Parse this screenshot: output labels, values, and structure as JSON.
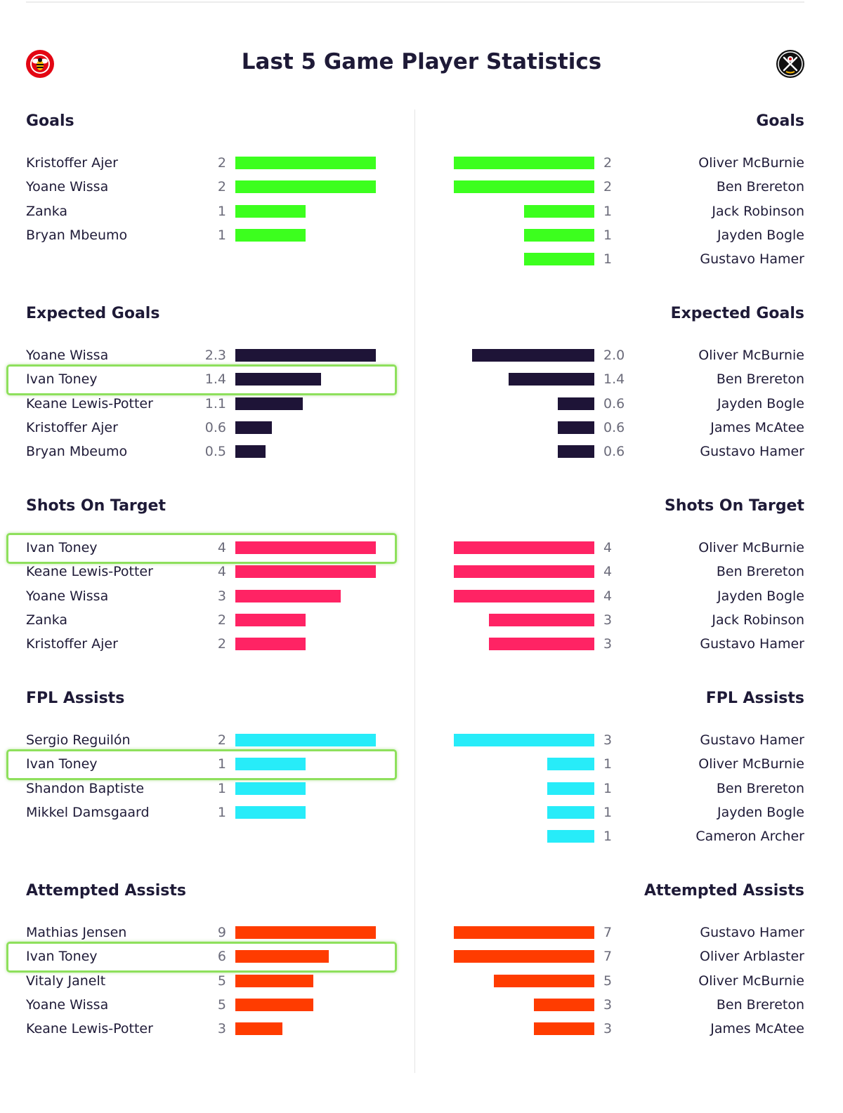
{
  "title": "Last 5 Game Player Statistics",
  "colors": {
    "goals": "#3cff1e",
    "expected_goals": "#1e1437",
    "shots_on_target": "#ff2364",
    "fpl_assists": "#27ecf9",
    "attempted_assists": "#ff3c00",
    "highlight": "#8ee05c"
  },
  "home_logo": "brentford-bee-crest-icon",
  "away_logo": "sheffield-united-crest-icon",
  "chart_data": [
    {
      "type": "bar",
      "title": "Goals",
      "max": 2,
      "home": {
        "players": [
          "Kristoffer Ajer",
          "Yoane Wissa",
          "Zanka",
          "Bryan Mbeumo"
        ],
        "values": [
          2,
          2,
          1,
          1
        ],
        "labels": [
          "2",
          "2",
          "1",
          "1"
        ]
      },
      "away": {
        "players": [
          "Oliver McBurnie",
          "Ben Brereton",
          "Jack Robinson",
          "Jayden Bogle",
          "Gustavo Hamer"
        ],
        "values": [
          2,
          2,
          1,
          1,
          1
        ],
        "labels": [
          "2",
          "2",
          "1",
          "1",
          "1"
        ]
      },
      "highlight_home_row": -1
    },
    {
      "type": "bar",
      "title": "Expected Goals",
      "max": 2.3,
      "home": {
        "players": [
          "Yoane Wissa",
          "Ivan Toney",
          "Keane Lewis-Potter",
          "Kristoffer Ajer",
          "Bryan Mbeumo"
        ],
        "values": [
          2.3,
          1.4,
          1.1,
          0.6,
          0.5
        ],
        "labels": [
          "2.3",
          "1.4",
          "1.1",
          "0.6",
          "0.5"
        ]
      },
      "away": {
        "players": [
          "Oliver McBurnie",
          "Ben Brereton",
          "Jayden Bogle",
          "James McAtee",
          "Gustavo Hamer"
        ],
        "values": [
          2.0,
          1.4,
          0.6,
          0.6,
          0.6
        ],
        "labels": [
          "2.0",
          "1.4",
          "0.6",
          "0.6",
          "0.6"
        ]
      },
      "highlight_home_row": 1
    },
    {
      "type": "bar",
      "title": "Shots On Target",
      "max": 4,
      "home": {
        "players": [
          "Ivan Toney",
          "Keane Lewis-Potter",
          "Yoane Wissa",
          "Zanka",
          "Kristoffer Ajer"
        ],
        "values": [
          4,
          4,
          3,
          2,
          2
        ],
        "labels": [
          "4",
          "4",
          "3",
          "2",
          "2"
        ]
      },
      "away": {
        "players": [
          "Oliver McBurnie",
          "Ben Brereton",
          "Jayden Bogle",
          "Jack Robinson",
          "Gustavo Hamer"
        ],
        "values": [
          4,
          4,
          4,
          3,
          3
        ],
        "labels": [
          "4",
          "4",
          "4",
          "3",
          "3"
        ]
      },
      "highlight_home_row": 0
    },
    {
      "type": "bar",
      "title": "FPL Assists",
      "max": 2,
      "away_max": 3,
      "home": {
        "players": [
          "Sergio Reguilón",
          "Ivan Toney",
          "Shandon Baptiste",
          "Mikkel Damsgaard"
        ],
        "values": [
          2,
          1,
          1,
          1
        ],
        "labels": [
          "2",
          "1",
          "1",
          "1"
        ]
      },
      "away": {
        "players": [
          "Gustavo Hamer",
          "Oliver McBurnie",
          "Ben Brereton",
          "Jayden Bogle",
          "Cameron Archer"
        ],
        "values": [
          3,
          1,
          1,
          1,
          1
        ],
        "labels": [
          "3",
          "1",
          "1",
          "1",
          "1"
        ]
      },
      "highlight_home_row": 1
    },
    {
      "type": "bar",
      "title": "Attempted Assists",
      "max": 9,
      "away_max": 7,
      "home": {
        "players": [
          "Mathias Jensen",
          "Ivan Toney",
          "Vitaly Janelt",
          "Yoane Wissa",
          "Keane Lewis-Potter"
        ],
        "values": [
          9,
          6,
          5,
          5,
          3
        ],
        "labels": [
          "9",
          "6",
          "5",
          "5",
          "3"
        ]
      },
      "away": {
        "players": [
          "Gustavo Hamer",
          "Oliver Arblaster",
          "Oliver McBurnie",
          "Ben Brereton",
          "James McAtee"
        ],
        "values": [
          7,
          7,
          5,
          3,
          3
        ],
        "labels": [
          "7",
          "7",
          "5",
          "3",
          "3"
        ]
      },
      "highlight_home_row": 1
    }
  ]
}
